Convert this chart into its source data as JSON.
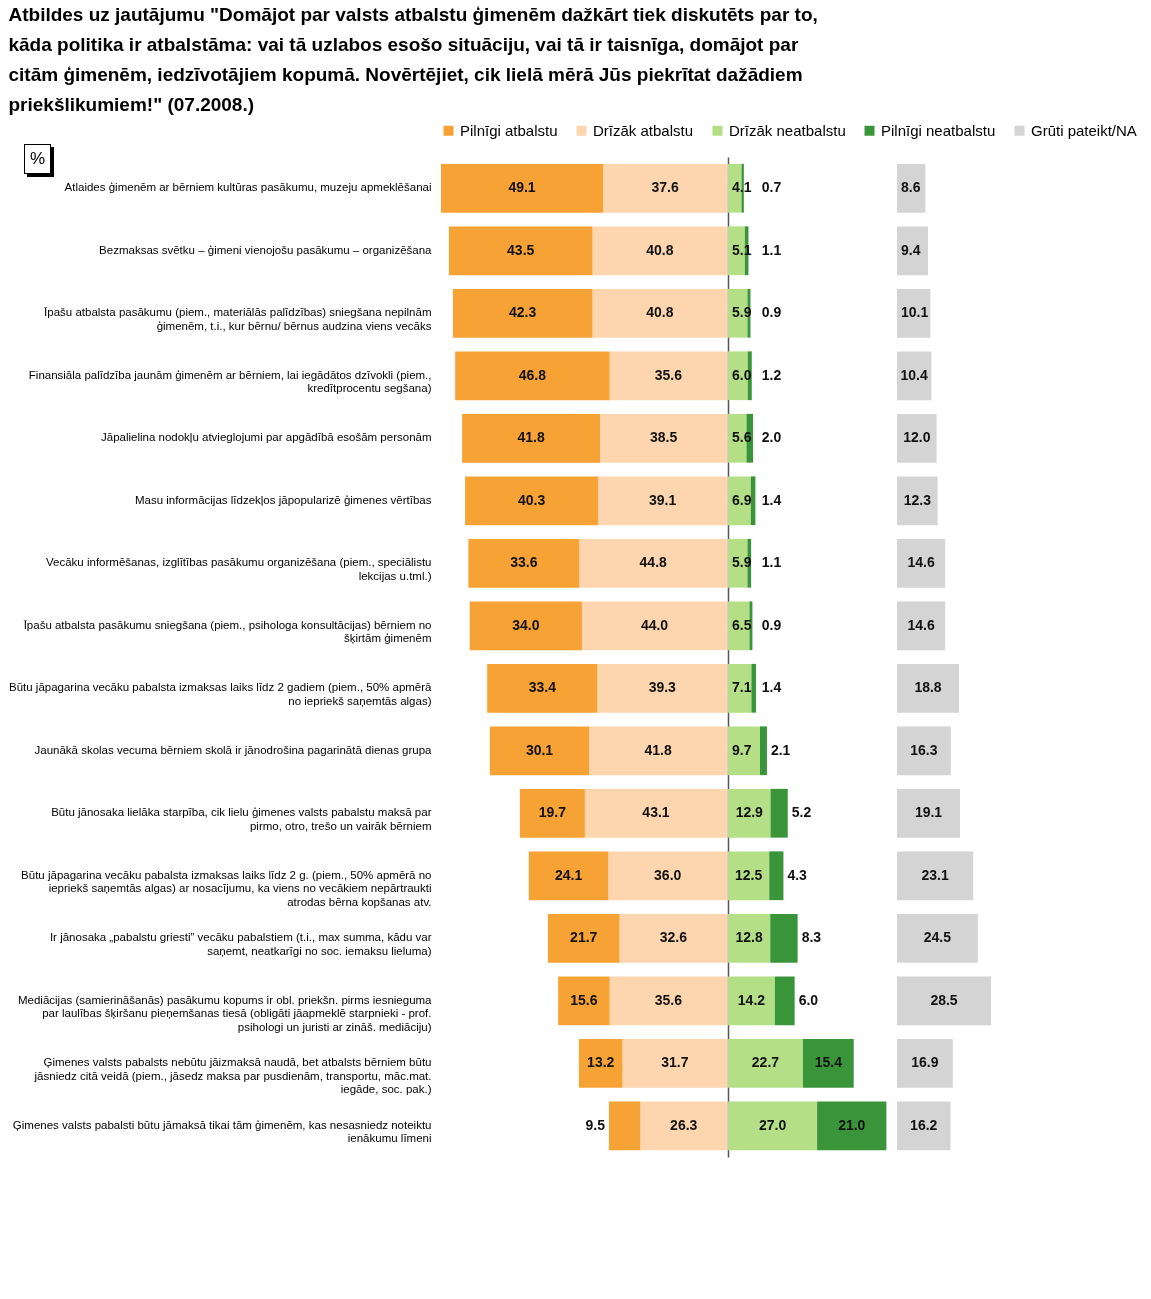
{
  "chart_data": [
    {
      "type": "bar",
      "orientation": "horizontal",
      "stacked": true,
      "tick_labels": "y",
      "legend": "top",
      "title": "Atbildes uz jautājumu \"Domājot par valsts atbalstu ģimenēm dažkārt tiek diskutēts par to, kāda politika ir atbalstāma: vai tā uzlabos esošo situāciju, vai tā ir taisnīga, domājot par citām ģimenēm, iedzīvotājiem kopumā. Novērtējiet, cik lielā mērā Jūs piekrītat dažādiem priekšlikumiem!\" (07.2008.)",
      "annotations": [
        "%"
      ],
      "categories": [
        "Atlaides ģimenēm ar bērniem kultūras pasākumu, muzeju apmeklēšanai",
        "Bezmaksas svētku – ģimeni vienojošu pasākumu – organizēšana",
        "Īpašu atbalsta pasākumu (piem., materiālās palīdzības) sniegšana nepilnām ģimenēm, t.i., kur bērnu/ bērnus audzina viens vecāks",
        "Finansiāla palīdzība jaunām ģimenēm ar bērniem, lai iegādātos dzīvokli (piem., kredītprocentu segšana)",
        "Jāpalielina nodokļu atvieglojumi par apgādībā esošām personām",
        "Masu informācijas līdzekļos jāpopularizē ģimenes vērtības",
        "Vecāku informēšanas, izglītības pasākumu organizēšana (piem., speciālistu lekcijas u.tml.)",
        "Īpašu atbalsta pasākumu sniegšana (piem., psihologa konsultācijas) bērniem no šķirtām ģimenēm",
        "Būtu jāpagarina vecāku pabalsta izmaksas laiks līdz 2 gadiem (piem., 50% apmērā no iepriekš saņemtās algas)",
        "Jaunākā skolas vecuma bērniem skolā ir jānodrošina pagarinātā dienas grupa",
        "Būtu jānosaka lielāka starpība, cik lielu ģimenes valsts pabalstu maksā par pirmo, otro, trešo un vairāk bērniem",
        "Būtu jāpagarina vecāku pabalsta izmaksas laiks līdz 2 g. (piem., 50% apmērā no iepriekš saņemtās algas) ar nosacījumu, ka viens no vecākiem nepārtraukti atrodas bērna kopšanas atv.",
        "Ir jānosaka „pabalstu griesti” vecāku pabalstiem (t.i., max summa, kādu var saņemt, neatkarīgi no soc. iemaksu lieluma)",
        "Mediācijas (samierināšanās) pasākumu kopums ir obl. priekšn. pirms iesnieguma par laulības šķiršanu pieņemšanas tiesā (obligāti jāapmeklē starpnieki - prof. psihologi un juristi ar zināš. mediāciju)",
        "Ģimenes valsts pabalsts nebūtu jāizmaksā naudā, bet atbalsts bērniem būtu jāsniedz citā veidā (piem., jāsedz maksa par pusdienām, transportu, māc.mat. iegāde, soc. pak.)",
        "Ģimenes valsts pabalsti būtu jāmaksā tikai tām ģimenēm, kas nesasniedz noteiktu ienākumu līmeni"
      ],
      "series": [
        {
          "name": "Drīzāk atbalstu",
          "color": "#fdd6b0",
          "values": [
            37.6,
            40.8,
            40.8,
            35.6,
            38.5,
            39.1,
            44.8,
            44.0,
            39.3,
            41.8,
            43.1,
            36.0,
            32.6,
            35.6,
            31.7,
            26.3
          ],
          "value_labels": [
            "37.6",
            "40.8",
            "40.8",
            "35.6",
            "38.5",
            "39.1",
            "44.8",
            "44.0",
            "39.3",
            "41.8",
            "43.1",
            "36.0",
            "32.6",
            "35.6",
            "31.7",
            "26.3"
          ]
        },
        {
          "name": "Pilnīgi atbalstu",
          "color": "#f7a234",
          "values": [
            49.1,
            43.5,
            42.3,
            46.8,
            41.8,
            40.3,
            33.6,
            34.0,
            33.4,
            30.1,
            19.7,
            24.1,
            21.7,
            15.6,
            13.2,
            9.5
          ],
          "value_labels": [
            "49.1",
            "43.5",
            "42.3",
            "46.8",
            "41.8",
            "40.3",
            "33.6",
            "34.0",
            "33.4",
            "30.1",
            "19.7",
            "24.1",
            "21.7",
            "15.6",
            "13.2",
            "9.5"
          ]
        }
      ]
    },
    {
      "type": "bar",
      "orientation": "horizontal",
      "stacked": true,
      "tick_labels": false,
      "legend": "top",
      "categories": [
        null,
        null,
        null,
        null,
        null,
        null,
        null,
        null,
        null,
        null,
        null,
        null,
        null,
        null,
        null,
        null
      ],
      "series": [
        {
          "name": "Drīzāk neatbalstu",
          "color": "#b4df86",
          "values": [
            4.1,
            5.1,
            5.9,
            6.0,
            5.6,
            6.9,
            5.9,
            6.5,
            7.1,
            9.7,
            12.9,
            12.5,
            12.8,
            14.2,
            22.7,
            27.0
          ],
          "value_labels": [
            "4.1",
            "5.1",
            "5.9",
            "6.0",
            "5.6",
            "6.9",
            "5.9",
            "6.5",
            "7.1",
            "9.7",
            "12.9",
            "12.5",
            "12.8",
            "14.2",
            "22.7",
            "27.0"
          ]
        },
        {
          "name": "Pilnīgi neatbalstu",
          "color": "#3a953a",
          "values": [
            0.7,
            1.1,
            0.9,
            1.2,
            2.0,
            1.4,
            1.1,
            0.9,
            1.4,
            2.1,
            5.2,
            4.3,
            8.3,
            6.0,
            15.4,
            21.0
          ],
          "value_labels": [
            "0.7",
            "1.1",
            "0.9",
            "1.2",
            "2.0",
            "1.4",
            "1.1",
            "0.9",
            "1.4",
            "2.1",
            "5.2",
            "4.3",
            "8.3",
            "6.0",
            "15.4",
            "21.0"
          ]
        }
      ]
    },
    {
      "type": "bar",
      "orientation": "horizontal",
      "stacked": true,
      "tick_labels": false,
      "legend": "top",
      "categories": [
        null,
        null,
        null,
        null,
        null,
        null,
        null,
        null,
        null,
        null,
        null,
        null,
        null,
        null,
        null,
        null
      ],
      "series": [
        {
          "name": "Grūti pateikt/NA",
          "color": "#d4d4d4",
          "values": [
            8.6,
            9.4,
            10.1,
            10.4,
            12.0,
            12.3,
            14.6,
            14.6,
            18.8,
            16.3,
            19.1,
            23.1,
            24.5,
            28.5,
            16.9,
            16.2
          ],
          "value_labels": [
            "8.6",
            "9.4",
            "10.1",
            "10.4",
            "12.0",
            "12.3",
            "14.6",
            "14.6",
            "18.8",
            "16.3",
            "19.1",
            "23.1",
            "24.5",
            "28.5",
            "16.9",
            "16.2"
          ]
        }
      ]
    }
  ]
}
